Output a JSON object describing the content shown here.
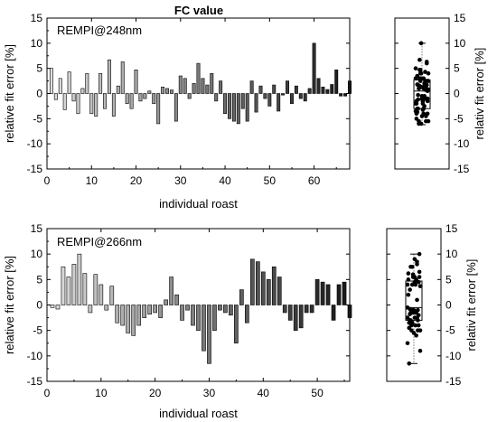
{
  "figure_title": "FC value",
  "chart_data": [
    {
      "type": "bar",
      "title": "REMPI@248nm",
      "xlabel": "individual roast",
      "ylabel": "relative fit error [%]",
      "xlim": [
        0,
        68
      ],
      "ylim": [
        -15,
        15
      ],
      "xticks": [
        "0",
        "10",
        "20",
        "30",
        "40",
        "50",
        "60"
      ],
      "yticks": [
        "-15",
        "-10",
        "-5",
        "0",
        "5",
        "10",
        "15"
      ],
      "values": [
        5.0,
        -1.2,
        3.0,
        -3.2,
        4.3,
        -1.5,
        -4.0,
        1.0,
        4.0,
        -4.0,
        -4.5,
        4.0,
        -3.0,
        6.7,
        -4.5,
        1.5,
        6.3,
        -2.0,
        -3.0,
        4.7,
        -1.5,
        -1.0,
        0.5,
        -2.0,
        -6.0,
        1.3,
        1.0,
        0.7,
        -5.5,
        3.5,
        3.0,
        -1.0,
        2.0,
        6.0,
        3.0,
        1.7,
        4.0,
        -1.5,
        2.5,
        -4.0,
        -5.0,
        -5.5,
        -6.0,
        -3.0,
        -5.5,
        2.5,
        -3.7,
        1.5,
        -1.0,
        -2.5,
        1.7,
        -3.5,
        -0.3,
        2.5,
        -2.0,
        1.5,
        -1.0,
        -1.5,
        1.0,
        10.0,
        3.0,
        1.3,
        0.8,
        1.8,
        4.7,
        -0.5,
        -0.5,
        2.5
      ],
      "boxplot": {
        "ylabel": "relativ fit error [%]",
        "min": -6.2,
        "q1": -3.0,
        "median": 0.5,
        "q3": 2.7,
        "max": 10.0
      }
    },
    {
      "type": "bar",
      "title": "REMPI@266nm",
      "xlabel": "individual roast",
      "ylabel": "relative fit error [%]",
      "xlim": [
        0,
        56
      ],
      "ylim": [
        -15,
        15
      ],
      "xticks": [
        "0",
        "10",
        "20",
        "30",
        "40",
        "50"
      ],
      "yticks": [
        "-15",
        "-10",
        "-5",
        "0",
        "5",
        "10",
        "15"
      ],
      "values": [
        -0.5,
        -0.8,
        7.5,
        5.5,
        8.0,
        10.0,
        6.2,
        -1.5,
        6.0,
        4.0,
        -1.0,
        3.7,
        -3.5,
        -4.0,
        -5.5,
        -6.0,
        -4.0,
        -2.5,
        -1.8,
        -1.5,
        -2.5,
        1.0,
        5.5,
        2.0,
        -3.0,
        -1.0,
        -4.0,
        -5.0,
        -9.0,
        -11.5,
        -5.0,
        -1.0,
        -1.5,
        -2.0,
        -7.5,
        3.0,
        -3.5,
        9.0,
        8.5,
        6.5,
        5.0,
        7.5,
        5.5,
        -1.5,
        -3.0,
        -5.0,
        -4.5,
        -1.5,
        -1.5,
        5.0,
        4.5,
        4.0,
        -3.0,
        4.0,
        4.5,
        -2.5
      ],
      "boxplot": {
        "ylabel": "relativ fit error [%]",
        "min": -11.5,
        "q1": -3.0,
        "median": -0.5,
        "q3": 4.7,
        "max": 10.0
      }
    }
  ]
}
